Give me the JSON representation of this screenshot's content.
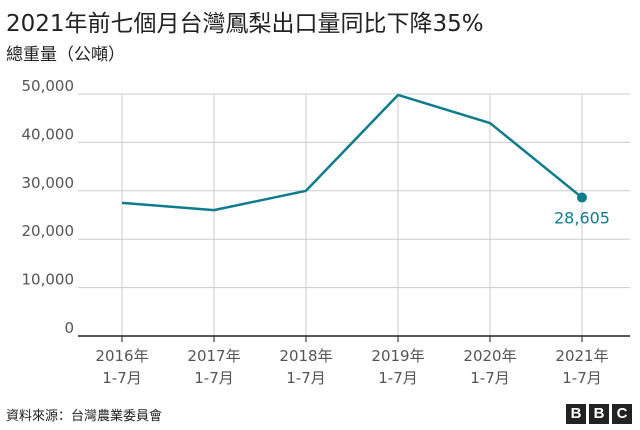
{
  "title": "2021年前七個月台灣鳳梨出口量同比下降35%",
  "subtitle": "總重量（公噸）",
  "source": "資料來源：台灣農業委員會",
  "brand": [
    "B",
    "B",
    "C"
  ],
  "colors": {
    "line": "#0e7c8c",
    "grid": "#cccccc",
    "axis": "#222222",
    "text": "#555555",
    "label": "#0e7c8c"
  },
  "chart_data": {
    "type": "line",
    "title": "2021年前七個月台灣鳳梨出口量同比下降35%",
    "ylabel": "總重量（公噸）",
    "categories": [
      "2016年 1-7月",
      "2017年 1-7月",
      "2018年 1-7月",
      "2019年 1-7月",
      "2020年 1-7月",
      "2021年 1-7月"
    ],
    "category_lines": [
      [
        "2016年",
        "1-7月"
      ],
      [
        "2017年",
        "1-7月"
      ],
      [
        "2018年",
        "1-7月"
      ],
      [
        "2019年",
        "1-7月"
      ],
      [
        "2020年",
        "1-7月"
      ],
      [
        "2021年",
        "1-7月"
      ]
    ],
    "values": [
      27500,
      26000,
      30000,
      49800,
      44000,
      28605
    ],
    "ylim": [
      0,
      50000
    ],
    "yticks": [
      0,
      10000,
      20000,
      30000,
      40000,
      50000
    ],
    "ytick_labels": [
      "0",
      "10,000",
      "20,000",
      "30,000",
      "40,000",
      "50,000"
    ],
    "annotation": {
      "index": 5,
      "text": "28,605"
    },
    "grid": true,
    "legend": "none"
  }
}
